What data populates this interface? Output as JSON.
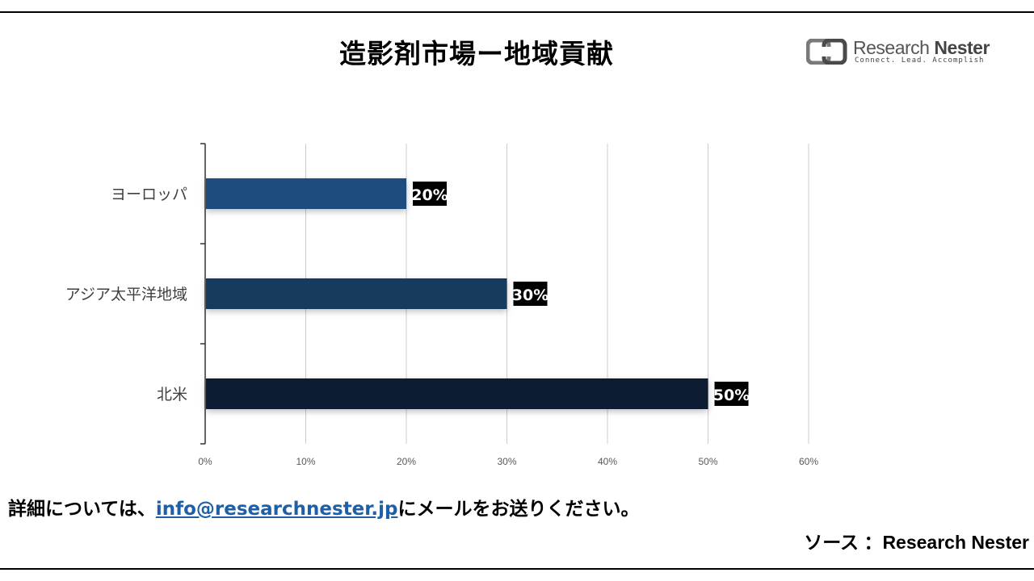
{
  "title": "造影剤市場ー地域貢献",
  "logo": {
    "name_light": "Research",
    "name_bold": "Nester",
    "tagline": "Connect. Lead. Accomplish",
    "icon": "research-nester-logo-icon"
  },
  "footer": {
    "prefix": "詳細については、",
    "email": "info@researchnester.jp",
    "suffix": "にメールをお送りください。"
  },
  "source": "ソース ：Research Nester",
  "colors": {
    "europe": "#1f4e7e",
    "asia_pacific": "#173a5e",
    "north_america": "#0f1f30",
    "label_bg": "#000000",
    "grid": "#cccccc"
  },
  "chart_data": {
    "type": "bar",
    "orientation": "horizontal",
    "categories": [
      "ヨーロッパ",
      "アジア太平洋地域",
      "北米"
    ],
    "values": [
      20,
      30,
      50
    ],
    "data_labels": [
      "20%",
      "30%",
      "50%"
    ],
    "x_ticks": [
      "0%",
      "10%",
      "20%",
      "30%",
      "40%",
      "50%",
      "60%"
    ],
    "xlim": [
      0,
      60
    ],
    "grid": true,
    "legend": "none"
  }
}
